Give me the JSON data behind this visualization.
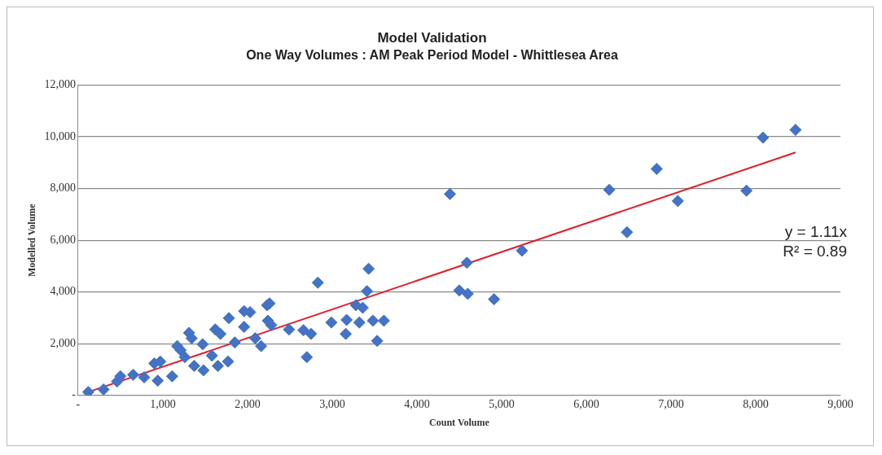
{
  "chart_data": {
    "type": "scatter",
    "title": "Model Validation",
    "subtitle": "One Way Volumes : AM Peak Period Model - Whittlesea Area",
    "xlabel": "Count Volume",
    "ylabel": "Modelled Volume",
    "xlim": [
      0,
      9000
    ],
    "ylim": [
      0,
      12000
    ],
    "xticks": [
      {
        "value": 0,
        "label": "-"
      },
      {
        "value": 1000,
        "label": "1,000"
      },
      {
        "value": 2000,
        "label": "2,000"
      },
      {
        "value": 3000,
        "label": "3,000"
      },
      {
        "value": 4000,
        "label": "4,000"
      },
      {
        "value": 5000,
        "label": "5,000"
      },
      {
        "value": 6000,
        "label": "6,000"
      },
      {
        "value": 7000,
        "label": "7,000"
      },
      {
        "value": 8000,
        "label": "8,000"
      },
      {
        "value": 9000,
        "label": "9,000"
      }
    ],
    "yticks": [
      {
        "value": 0,
        "label": "-"
      },
      {
        "value": 2000,
        "label": "2,000"
      },
      {
        "value": 4000,
        "label": "4,000"
      },
      {
        "value": 6000,
        "label": "6,000"
      },
      {
        "value": 8000,
        "label": "8,000"
      },
      {
        "value": 10000,
        "label": "10,000"
      },
      {
        "value": 12000,
        "label": "12,000"
      }
    ],
    "grid": "y",
    "legend": false,
    "series": [
      {
        "color": "#4472c4",
        "marker": "diamond",
        "x": [
          120,
          300,
          460,
          500,
          650,
          780,
          900,
          940,
          970,
          1110,
          1170,
          1210,
          1260,
          1310,
          1340,
          1370,
          1470,
          1480,
          1580,
          1620,
          1650,
          1680,
          1770,
          1780,
          1850,
          1960,
          1960,
          2030,
          2090,
          2160,
          2230,
          2240,
          2260,
          2280,
          2490,
          2660,
          2700,
          2750,
          2830,
          2990,
          3160,
          3170,
          3280,
          3320,
          3360,
          3410,
          3430,
          3480,
          3530,
          3610,
          4390,
          4500,
          4590,
          4600,
          4910,
          5240,
          6270,
          6480,
          6830,
          7080,
          7890,
          8085,
          8470
        ],
        "values": [
          130,
          230,
          540,
          740,
          800,
          700,
          1240,
          570,
          1310,
          740,
          1910,
          1750,
          1480,
          2420,
          2210,
          1140,
          1980,
          970,
          1540,
          2550,
          1140,
          2380,
          1310,
          2990,
          2050,
          3260,
          2650,
          3220,
          2210,
          1910,
          3490,
          2890,
          3560,
          2720,
          2550,
          2520,
          1480,
          2380,
          4360,
          2820,
          2380,
          2920,
          3490,
          2820,
          3390,
          4030,
          4900,
          2890,
          2110,
          2890,
          7790,
          4060,
          5130,
          3930,
          3720,
          5600,
          7950,
          6310,
          8760,
          7520,
          7920,
          9970,
          10270
        ]
      },
      {
        "type": "line",
        "color": "#e0202a",
        "marker": "none",
        "line_style": "solid",
        "x": [
          120,
          8470
        ],
        "values": [
          130,
          9400
        ]
      }
    ],
    "annotations": [
      "y = 1.11x",
      "R² = 0.89"
    ]
  }
}
